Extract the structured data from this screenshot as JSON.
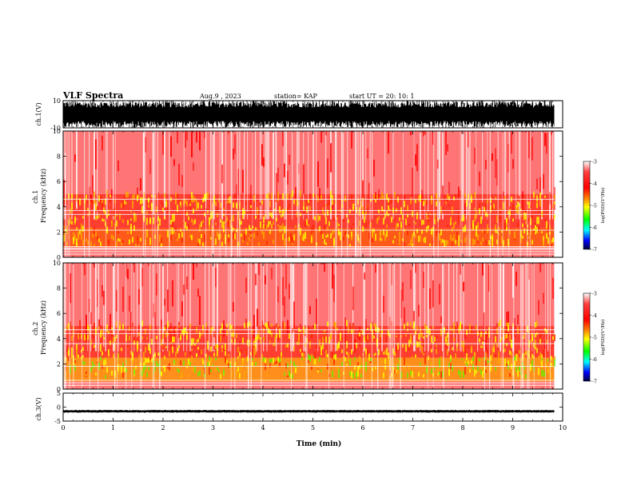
{
  "header": {
    "title": "VLF Spectra",
    "date": "Aug.9 , 2023",
    "station": "station= KAP",
    "start": "start UT = 20: 10: 1"
  },
  "chart_data": [
    {
      "type": "line",
      "panel": "ch1-waveform",
      "ylabel": "ch.1(V)",
      "ylim": [
        -10,
        10
      ],
      "yticks": [
        "10",
        "-10"
      ],
      "xlim": [
        0,
        10
      ],
      "description_of_signal": "dense noisy waveform filling most of ±10 V range",
      "data_end_min": 9.83
    },
    {
      "type": "heatmap",
      "panel": "ch1-spectrogram",
      "ylabel": "ch.1 Frequency (kHz)",
      "ylim": [
        0,
        10
      ],
      "yticks": [
        "0",
        "2",
        "4",
        "6",
        "8",
        "10"
      ],
      "xlim": [
        0,
        10
      ],
      "colorbar": {
        "label": "log(PSD)(V²/Hz)",
        "range": [
          -7,
          -3
        ],
        "ticks": [
          "-3",
          "-4",
          "-5",
          "-6",
          "-7"
        ]
      },
      "bands": [
        {
          "from_khz": 0.0,
          "to_khz": 0.6,
          "level": "weak"
        },
        {
          "from_khz": 0.8,
          "to_khz": 2.3,
          "level": "strong"
        },
        {
          "from_khz": 2.3,
          "to_khz": 5.0,
          "level": "medium"
        },
        {
          "from_khz": 5.0,
          "to_khz": 10.0,
          "level": "weak"
        }
      ],
      "data_end_min": 9.83
    },
    {
      "type": "heatmap",
      "panel": "ch2-spectrogram",
      "ylabel": "ch.2 Frequency (kHz)",
      "ylim": [
        0,
        10
      ],
      "yticks": [
        "0",
        "2",
        "4",
        "6",
        "8",
        "10"
      ],
      "xlim": [
        0,
        10
      ],
      "colorbar": {
        "label": "log(PSD)(V²/Hz)",
        "range": [
          -7,
          -3
        ],
        "ticks": [
          "-3",
          "-4",
          "-5",
          "-6",
          "-7"
        ]
      },
      "bands": [
        {
          "from_khz": 0.0,
          "to_khz": 0.6,
          "level": "weak"
        },
        {
          "from_khz": 0.6,
          "to_khz": 2.5,
          "level": "very-strong"
        },
        {
          "from_khz": 2.5,
          "to_khz": 5.0,
          "level": "medium"
        },
        {
          "from_khz": 5.0,
          "to_khz": 10.0,
          "level": "weak"
        }
      ],
      "data_end_min": 9.83
    },
    {
      "type": "line",
      "panel": "ch3-waveform",
      "ylabel": "ch.3(V)",
      "ylim": [
        -5,
        5
      ],
      "yticks": [
        "5",
        "0",
        "-5"
      ],
      "xlim": [
        0,
        10
      ],
      "xlabel": "Time (min)",
      "xticks": [
        "0",
        "1",
        "2",
        "3",
        "4",
        "5",
        "6",
        "7",
        "8",
        "9",
        "10"
      ],
      "signal_center_v": -1.5,
      "signal_halfwidth_v": 0.5,
      "data_end_min": 9.83
    }
  ],
  "colors": {
    "weak": "#ff4444",
    "medium": "#ff2020",
    "strong": "#ffff00",
    "green": "#00dd00",
    "colorbar_stops": [
      "#ffffff",
      "#ff0000",
      "#ffa500",
      "#ffff00",
      "#00ff00",
      "#00ffff",
      "#0000ff",
      "#000033"
    ]
  }
}
